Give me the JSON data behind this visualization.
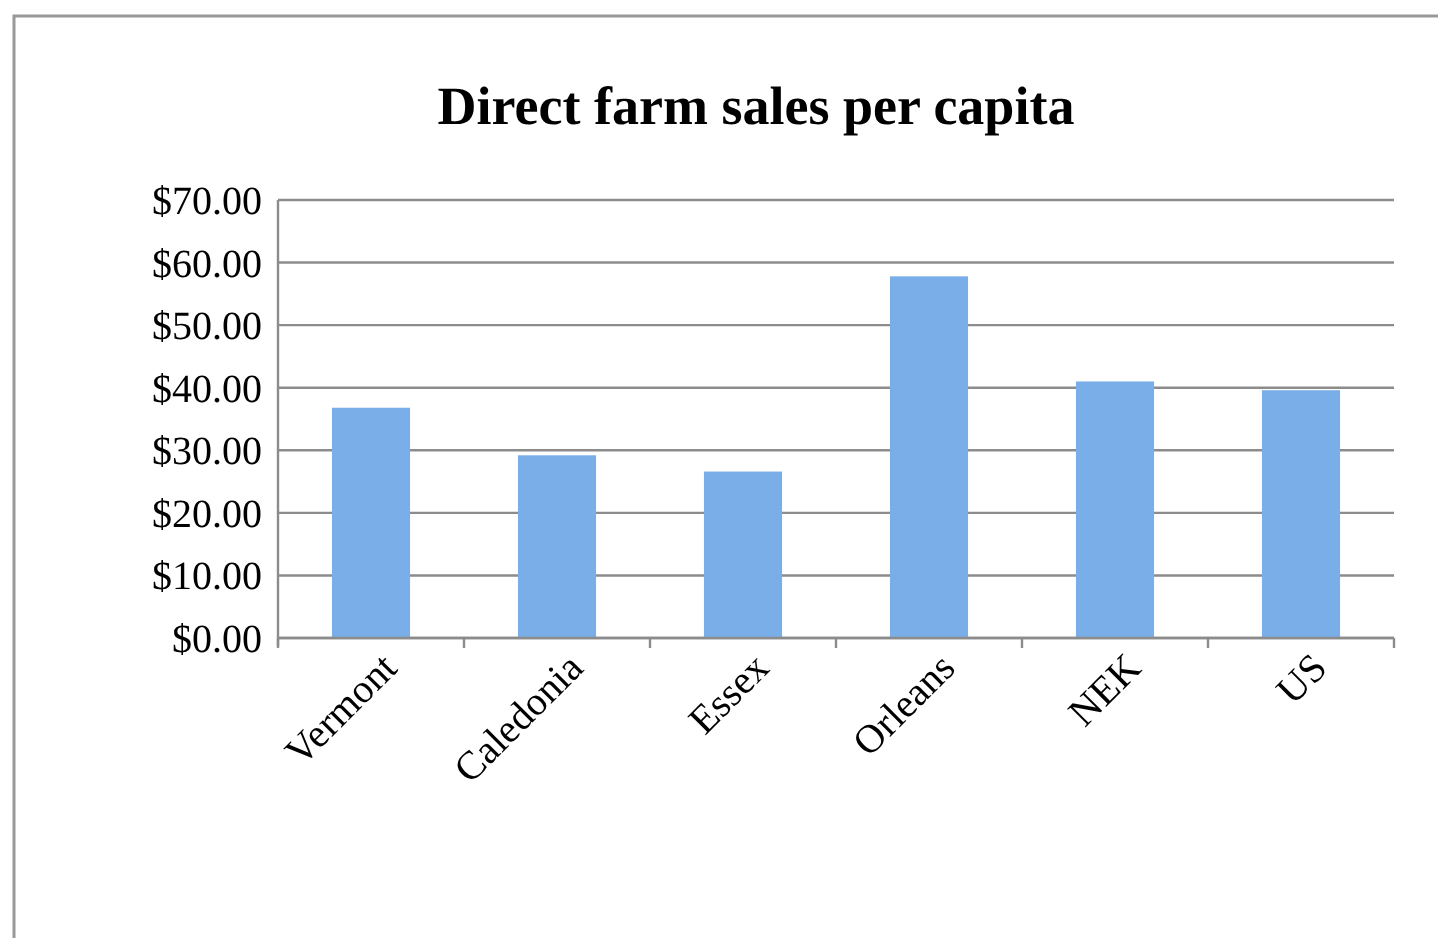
{
  "chart_data": {
    "type": "bar",
    "title": "Direct farm sales per capita",
    "categories": [
      "Vermont",
      "Caledonia",
      "Essex",
      "Orleans",
      "NEK",
      "US"
    ],
    "values": [
      36.8,
      29.2,
      26.6,
      57.8,
      41.0,
      39.6
    ],
    "color": "#7aaee8",
    "ylim": [
      0,
      70
    ],
    "yticks": [
      {
        "value": 0,
        "label": "$0.00"
      },
      {
        "value": 10,
        "label": "$10.00"
      },
      {
        "value": 20,
        "label": "$20.00"
      },
      {
        "value": 30,
        "label": "$30.00"
      },
      {
        "value": 40,
        "label": "$40.00"
      },
      {
        "value": 50,
        "label": "$50.00"
      },
      {
        "value": 60,
        "label": "$60.00"
      },
      {
        "value": 70,
        "label": "$70.00"
      }
    ],
    "grid": "y"
  }
}
